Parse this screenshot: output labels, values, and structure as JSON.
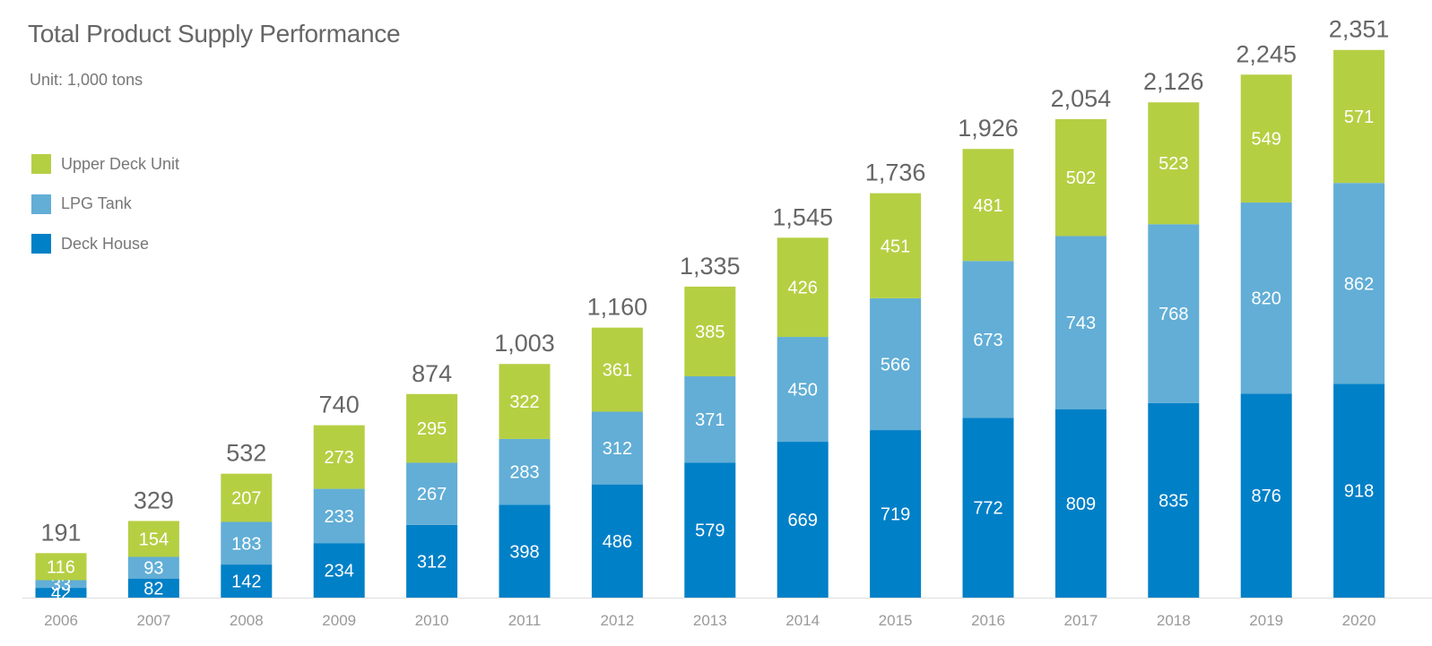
{
  "chart_data": {
    "type": "bar",
    "stacked": true,
    "title": "Total Product Supply Performance",
    "subtitle": "Unit: 1,000 tons",
    "categories": [
      "2006",
      "2007",
      "2008",
      "2009",
      "2010",
      "2011",
      "2012",
      "2013",
      "2014",
      "2015",
      "2016",
      "2017",
      "2018",
      "2019",
      "2020"
    ],
    "series": [
      {
        "name": "Deck House",
        "color": "#0080c7",
        "values": [
          42,
          82,
          142,
          234,
          312,
          398,
          486,
          579,
          669,
          719,
          772,
          809,
          835,
          876,
          918
        ]
      },
      {
        "name": "LPG Tank",
        "color": "#62aed6",
        "values": [
          33,
          93,
          183,
          233,
          267,
          283,
          312,
          371,
          450,
          566,
          673,
          743,
          768,
          820,
          862
        ]
      },
      {
        "name": "Upper Deck Unit",
        "color": "#b5cf43",
        "values": [
          116,
          154,
          207,
          273,
          295,
          322,
          361,
          385,
          426,
          451,
          481,
          502,
          523,
          549,
          571
        ]
      }
    ],
    "totals": [
      "191",
      "329",
      "532",
      "740",
      "874",
      "1,003",
      "1,160",
      "1,335",
      "1,545",
      "1,736",
      "1,926",
      "2,054",
      "2,126",
      "2,245",
      "2,351"
    ],
    "legend_order": [
      "Upper Deck Unit",
      "LPG Tank",
      "Deck House"
    ],
    "legend_position": "top-left",
    "xlabel": "",
    "ylabel": "",
    "grid": false
  }
}
